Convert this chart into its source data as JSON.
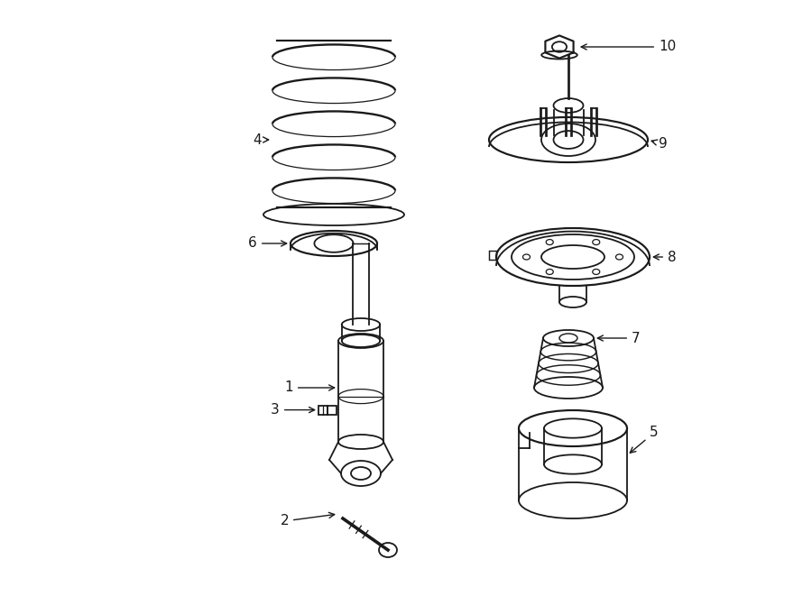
{
  "background_color": "#ffffff",
  "line_color": "#1a1a1a",
  "figsize": [
    9.0,
    6.61
  ],
  "dpi": 100,
  "lw": 1.3
}
